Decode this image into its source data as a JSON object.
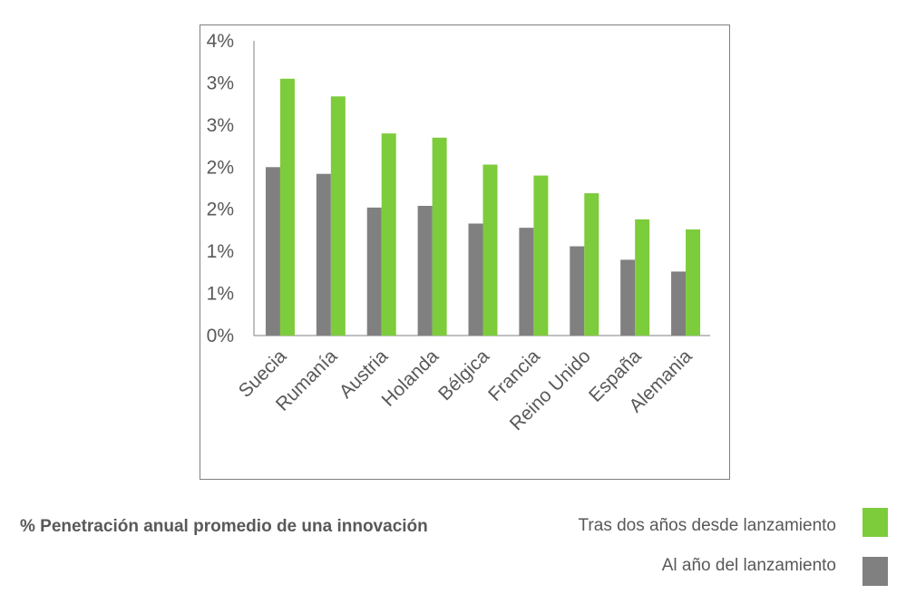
{
  "caption": "% Penetración anual promedio de una innovación",
  "legend": [
    {
      "name": "Tras dos años desde lanzamiento",
      "color": "#7dcc3c"
    },
    {
      "name": "Al año del lanzamiento",
      "color": "#808080"
    }
  ],
  "chart_data": {
    "type": "bar",
    "categories": [
      "Suecia",
      "Rumanía",
      "Austria",
      "Holanda",
      "Bélgica",
      "Francia",
      "Reino Unido",
      "España",
      "Alemania"
    ],
    "series": [
      {
        "name": "Al año del lanzamiento",
        "color": "#808080",
        "values": [
          2.0,
          1.92,
          1.52,
          1.54,
          1.33,
          1.28,
          1.06,
          0.9,
          0.76
        ]
      },
      {
        "name": "Tras dos años desde lanzamiento",
        "color": "#7dcc3c",
        "values": [
          3.05,
          2.84,
          2.4,
          2.35,
          2.03,
          1.9,
          1.69,
          1.38,
          1.26
        ]
      }
    ],
    "ylim": [
      0,
      3.5
    ],
    "y_ticks": [
      0,
      0.5,
      1.0,
      1.5,
      2.0,
      2.5,
      3.0,
      3.5
    ],
    "y_tick_labels": [
      "0%",
      "1%",
      "1%",
      "2%",
      "2%",
      "3%",
      "3%",
      "4%"
    ],
    "grid": false,
    "legend_position": "bottom-right"
  }
}
